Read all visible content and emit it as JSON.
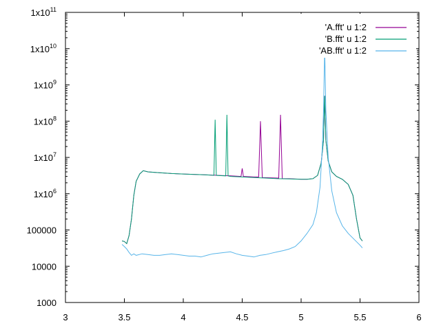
{
  "chart_data": {
    "type": "line",
    "title": "",
    "xlabel": "",
    "ylabel": "",
    "xlim": [
      3,
      6
    ],
    "ylim": [
      1000,
      100000000000
    ],
    "yscale": "log",
    "grid": false,
    "legend_position": "top-right",
    "x_ticks": [
      {
        "value": 3,
        "label": "3"
      },
      {
        "value": 3.5,
        "label": "3.5"
      },
      {
        "value": 4,
        "label": "4"
      },
      {
        "value": 4.5,
        "label": "4.5"
      },
      {
        "value": 5,
        "label": "5"
      },
      {
        "value": 5.5,
        "label": "5.5"
      },
      {
        "value": 6,
        "label": "6"
      }
    ],
    "y_ticks": [
      {
        "value": 1000,
        "label": "1000",
        "exp": ""
      },
      {
        "value": 10000,
        "label": "10000",
        "exp": ""
      },
      {
        "value": 100000,
        "label": "100000",
        "exp": ""
      },
      {
        "value": 1000000,
        "label": "1x10",
        "exp": "6"
      },
      {
        "value": 10000000,
        "label": "1x10",
        "exp": "7"
      },
      {
        "value": 100000000,
        "label": "1x10",
        "exp": "8"
      },
      {
        "value": 1000000000,
        "label": "1x10",
        "exp": "9"
      },
      {
        "value": 10000000000,
        "label": "1x10",
        "exp": "10"
      },
      {
        "value": 100000000000,
        "label": "1x10",
        "exp": "11"
      }
    ],
    "series": [
      {
        "name": "'A.fft' u 1:2",
        "color": "#940094",
        "x": [
          3.48,
          3.5,
          3.52,
          3.54,
          3.56,
          3.58,
          3.6,
          3.63,
          3.66,
          3.7,
          3.8,
          3.9,
          4.0,
          4.1,
          4.2,
          4.3,
          4.4,
          4.49,
          4.5,
          4.51,
          4.6,
          4.64,
          4.655,
          4.67,
          4.8,
          4.81,
          4.825,
          4.84,
          4.9,
          5.0,
          5.05,
          5.1,
          5.14,
          5.17,
          5.19,
          5.2,
          5.21,
          5.23,
          5.26,
          5.3,
          5.35,
          5.4,
          5.44,
          5.47,
          5.5,
          5.52
        ],
        "y": [
          50000,
          48000,
          42000,
          70000,
          200000,
          900000,
          2200000,
          3500000,
          4300000,
          4000000,
          3800000,
          3600000,
          3500000,
          3400000,
          3300000,
          3200000,
          3100000,
          3000000,
          5000000,
          3000000,
          2900000,
          2900000,
          100000000,
          2800000,
          2700000,
          2700000,
          150000000,
          2600000,
          2600000,
          2500000,
          2500000,
          2600000,
          3200000,
          7000000,
          30000000,
          500000000,
          30000000,
          8000000,
          4000000,
          3000000,
          2500000,
          1800000,
          900000,
          200000,
          60000,
          50000
        ]
      },
      {
        "name": "'B.fft' u 1:2",
        "color": "#009e73",
        "x": [
          3.48,
          3.5,
          3.52,
          3.54,
          3.56,
          3.58,
          3.6,
          3.63,
          3.66,
          3.7,
          3.8,
          3.9,
          4.0,
          4.1,
          4.2,
          4.26,
          4.27,
          4.28,
          4.36,
          4.37,
          4.38,
          4.4,
          4.5,
          4.6,
          4.7,
          4.8,
          4.9,
          5.0,
          5.05,
          5.1,
          5.14,
          5.17,
          5.19,
          5.2,
          5.21,
          5.23,
          5.26,
          5.3,
          5.35,
          5.4,
          5.44,
          5.47,
          5.5,
          5.52
        ],
        "y": [
          50000,
          48000,
          42000,
          70000,
          200000,
          900000,
          2200000,
          3500000,
          4300000,
          4000000,
          3800000,
          3600000,
          3500000,
          3400000,
          3300000,
          3200000,
          110000000,
          3200000,
          3100000,
          150000000,
          3100000,
          3000000,
          2900000,
          2800000,
          2700000,
          2600000,
          2550000,
          2500000,
          2500000,
          2600000,
          3200000,
          7000000,
          30000000,
          500000000,
          30000000,
          8000000,
          4000000,
          3000000,
          2500000,
          1800000,
          900000,
          200000,
          60000,
          50000
        ]
      },
      {
        "name": "'AB.fft' u 1:2",
        "color": "#56b4e9",
        "x": [
          3.48,
          3.5,
          3.52,
          3.54,
          3.56,
          3.58,
          3.6,
          3.65,
          3.7,
          3.75,
          3.8,
          3.85,
          3.9,
          3.95,
          4.0,
          4.05,
          4.1,
          4.15,
          4.2,
          4.25,
          4.3,
          4.35,
          4.4,
          4.45,
          4.5,
          4.55,
          4.6,
          4.65,
          4.7,
          4.75,
          4.8,
          4.85,
          4.9,
          4.95,
          5.0,
          5.05,
          5.1,
          5.13,
          5.16,
          5.18,
          5.19,
          5.2,
          5.21,
          5.23,
          5.26,
          5.3,
          5.35,
          5.4,
          5.45,
          5.5,
          5.52
        ],
        "y": [
          40000,
          35000,
          30000,
          24000,
          20000,
          22000,
          20000,
          22000,
          21000,
          20000,
          20000,
          21000,
          22000,
          21000,
          20000,
          19000,
          19000,
          18000,
          20000,
          22000,
          23000,
          24000,
          25000,
          22000,
          20000,
          19000,
          18000,
          20000,
          21000,
          23000,
          25000,
          27000,
          30000,
          35000,
          50000,
          80000,
          140000,
          300000,
          1500000,
          20000000,
          200000000,
          10000000000,
          200000000,
          10000000,
          1200000,
          300000,
          130000,
          80000,
          55000,
          38000,
          32000
        ]
      }
    ]
  }
}
